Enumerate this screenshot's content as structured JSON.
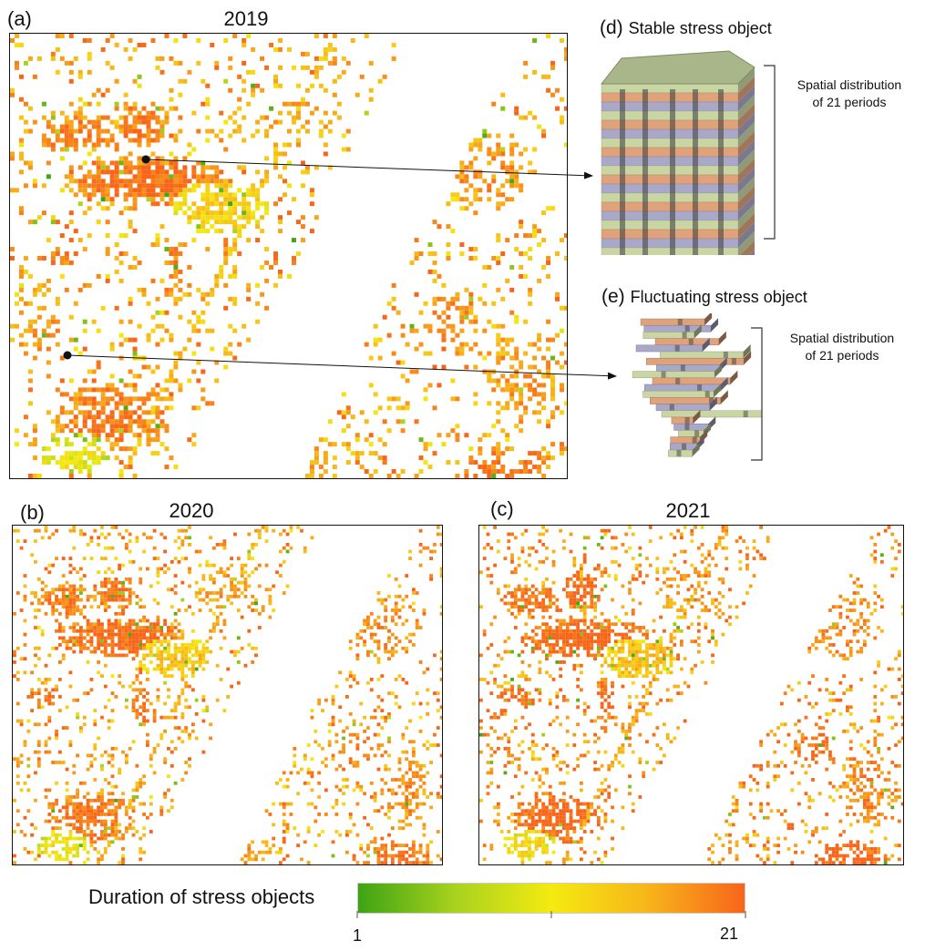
{
  "panels": {
    "a": {
      "letter": "(a)",
      "year": "2019"
    },
    "b": {
      "letter": "(b)",
      "year": "2020"
    },
    "c": {
      "letter": "(c)",
      "year": "2021"
    }
  },
  "objects": {
    "stable": {
      "letter": "(d)",
      "title": "Stable stress object",
      "brace_line1": "Spatial distribution",
      "brace_line2": "of 21 periods"
    },
    "fluctuating": {
      "letter": "(e)",
      "title": "Fluctuating stress object",
      "brace_line1": "Spatial distribution",
      "brace_line2": "of 21 periods"
    }
  },
  "layer_colors": [
    "#c9d6a4",
    "#e0a27a",
    "#a9a8c8"
  ],
  "legend": {
    "title": "Duration of stress objects",
    "min_label": "1",
    "max_label": "21",
    "min": 1,
    "max": 21,
    "colors": [
      "#3da314",
      "#a8d21e",
      "#f4ea10",
      "#f7b51a",
      "#f7651b"
    ]
  }
}
